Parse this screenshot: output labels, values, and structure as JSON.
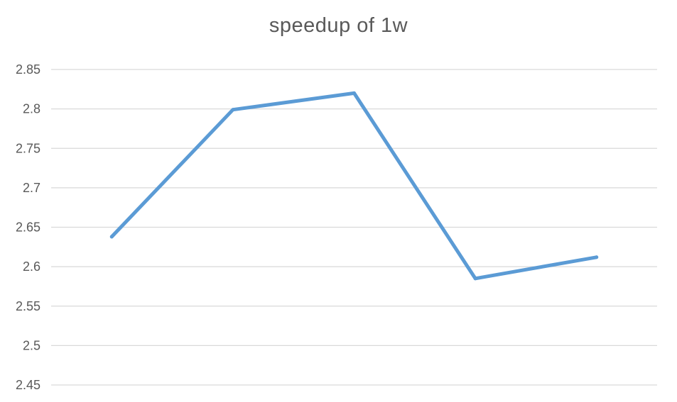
{
  "chart_data": {
    "type": "line",
    "title": "speedup of 1w",
    "xlabel": "",
    "ylabel": "",
    "ylim": [
      2.45,
      2.85
    ],
    "yticks": [
      "2.45",
      "2.5",
      "2.55",
      "2.6",
      "2.65",
      "2.7",
      "2.75",
      "2.8",
      "2.85"
    ],
    "grid": true,
    "legend": "none",
    "series": [
      {
        "color": "#5b9bd5",
        "values": [
          2.638,
          2.799,
          2.82,
          2.585,
          2.612
        ]
      }
    ]
  }
}
